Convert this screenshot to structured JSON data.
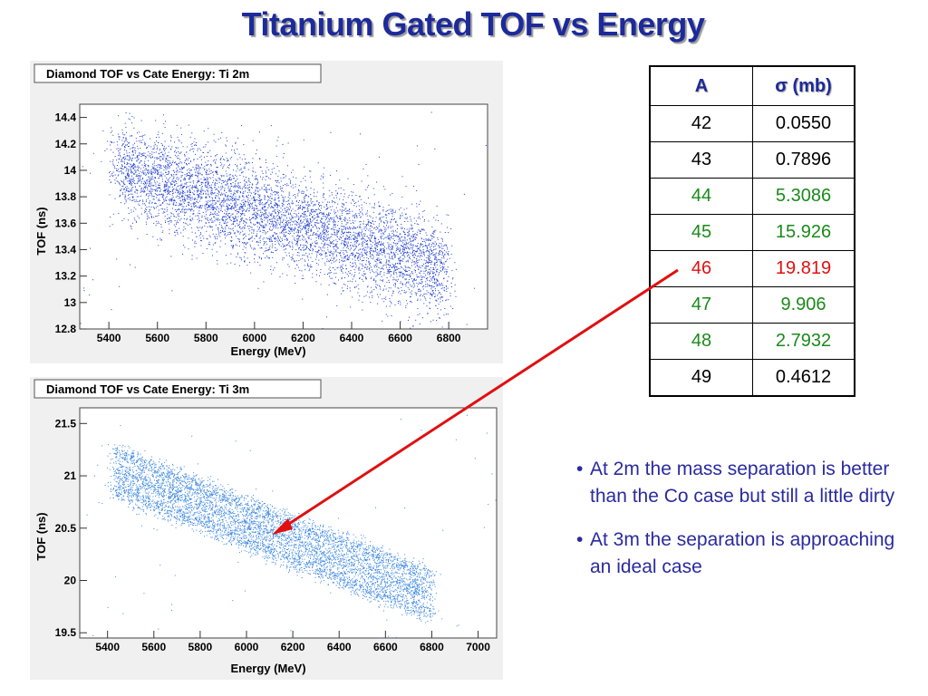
{
  "title": "Titanium Gated TOF vs Energy",
  "table": {
    "headers": [
      "A",
      "σ (mb)"
    ],
    "rows": [
      {
        "a": "42",
        "sigma": "0.0550",
        "color": "#000000"
      },
      {
        "a": "43",
        "sigma": "0.7896",
        "color": "#000000"
      },
      {
        "a": "44",
        "sigma": "5.3086",
        "color": "#1a8a1a"
      },
      {
        "a": "45",
        "sigma": "15.926",
        "color": "#1a8a1a"
      },
      {
        "a": "46",
        "sigma": "19.819",
        "color": "#e01010"
      },
      {
        "a": "47",
        "sigma": "9.906",
        "color": "#1a8a1a"
      },
      {
        "a": "48",
        "sigma": "2.7932",
        "color": "#1a8a1a"
      },
      {
        "a": "49",
        "sigma": "0.4612",
        "color": "#000000"
      }
    ]
  },
  "notes": [
    "At 2m the mass separation is better than the Co case but still a little dirty",
    "At 3m the separation is approaching an ideal case"
  ],
  "bullet_char": "•",
  "arrow_color": "#e01010",
  "chart_data": [
    {
      "type": "scatter",
      "title": "Diamond TOF vs Cate Energy: Ti 2m",
      "xlabel": "Energy (MeV)",
      "ylabel": "TOF (ns)",
      "xlim": [
        5280,
        6960
      ],
      "ylim": [
        12.8,
        14.5
      ],
      "xticks": [
        5400,
        5600,
        5800,
        6000,
        6200,
        6400,
        6600,
        6800
      ],
      "yticks": [
        12.8,
        13,
        13.2,
        13.4,
        13.6,
        13.8,
        14,
        14.2,
        14.4
      ],
      "tick_labels_x": [
        "5400",
        "5600",
        "5800",
        "6000",
        "6200",
        "6400",
        "6600",
        "6800"
      ],
      "tick_labels_y": [
        "12.8",
        "13",
        "13.2",
        "13.4",
        "13.6",
        "13.8",
        "14",
        "14.2",
        "14.4"
      ],
      "point_color": "#1f3fcf",
      "band": {
        "x_start": 5430,
        "x_end": 6790,
        "y_start": 14.02,
        "y_end": 13.25,
        "spread": 0.18
      },
      "bands": [
        0
      ],
      "points": 6000
    },
    {
      "type": "scatter",
      "title": "Diamond TOF vs Cate Energy: Ti 3m",
      "xlabel": "Energy (MeV)",
      "ylabel": "TOF (ns)",
      "xlim": [
        5280,
        7080
      ],
      "ylim": [
        19.45,
        21.65
      ],
      "xticks": [
        5400,
        5600,
        5800,
        6000,
        6200,
        6400,
        6600,
        6800,
        7000
      ],
      "yticks": [
        19.5,
        20,
        20.5,
        21,
        21.5
      ],
      "tick_labels_x": [
        "5400",
        "5600",
        "5800",
        "6000",
        "6200",
        "6400",
        "6600",
        "6800",
        "7000"
      ],
      "tick_labels_y": [
        "19.5",
        "20",
        "20.5",
        "21",
        "21.5"
      ],
      "point_color": "#3a86e0",
      "band": {
        "x_start": 5430,
        "x_end": 6790,
        "y_start": 21.05,
        "y_end": 19.86,
        "spread": 0.05
      },
      "bands": [
        -0.17,
        0,
        0.17
      ],
      "points": 6000
    }
  ]
}
